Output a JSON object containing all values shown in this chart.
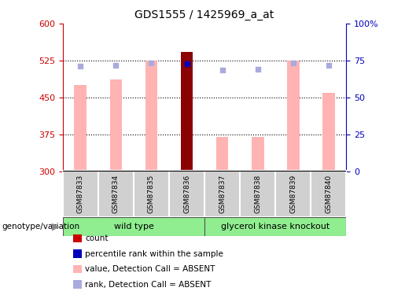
{
  "title": "GDS1555 / 1425969_a_at",
  "samples": [
    "GSM87833",
    "GSM87834",
    "GSM87835",
    "GSM87836",
    "GSM87837",
    "GSM87838",
    "GSM87839",
    "GSM87840"
  ],
  "bar_values": [
    475,
    487,
    525,
    543,
    370,
    370,
    525,
    460
  ],
  "bar_colors": [
    "#ffb3b3",
    "#ffb3b3",
    "#ffb3b3",
    "#8b0000",
    "#ffb3b3",
    "#ffb3b3",
    "#ffb3b3",
    "#ffb3b3"
  ],
  "rank_dots": [
    514,
    516,
    520,
    518,
    505,
    507,
    520,
    515
  ],
  "rank_dot_colors": [
    "#aaaadd",
    "#aaaadd",
    "#aaaadd",
    "#0000bb",
    "#aaaadd",
    "#aaaadd",
    "#aaaadd",
    "#aaaadd"
  ],
  "ylim_left": [
    300,
    600
  ],
  "ylim_right": [
    0,
    100
  ],
  "yticks_left": [
    300,
    375,
    450,
    525,
    600
  ],
  "yticks_right": [
    0,
    25,
    50,
    75,
    100
  ],
  "hlines": [
    375,
    450,
    525
  ],
  "left_color": "#cc0000",
  "right_color": "#0000bb",
  "wild_type_label": "wild type",
  "knockout_label": "glycerol kinase knockout",
  "genotype_label": "genotype/variation",
  "legend_items": [
    {
      "color": "#cc0000",
      "label": "count"
    },
    {
      "color": "#0000bb",
      "label": "percentile rank within the sample"
    },
    {
      "color": "#ffb3b3",
      "label": "value, Detection Call = ABSENT"
    },
    {
      "color": "#aaaadd",
      "label": "rank, Detection Call = ABSENT"
    }
  ],
  "bg_color": "#ffffff",
  "bar_width": 0.35,
  "bar_bottom": 300,
  "wt_color": "#90ee90",
  "ko_color": "#90ee90",
  "sample_bg": "#d0d0d0"
}
